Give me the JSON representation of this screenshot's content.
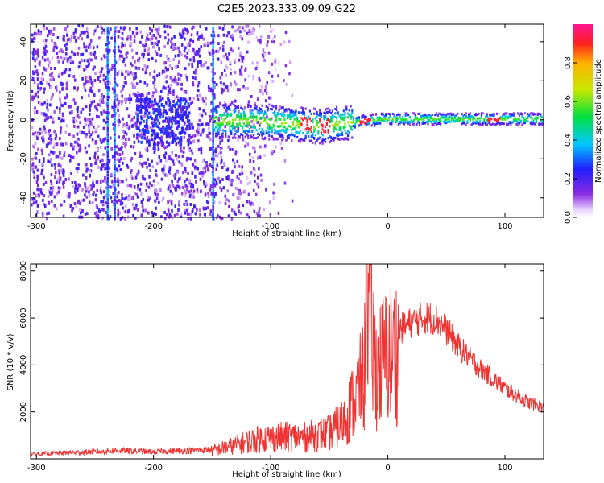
{
  "figure_title": "C2E5.2023.333.09.09.G22",
  "colors": {
    "snr_line": "#ee3333",
    "frame": "#000000"
  },
  "chart_data": [
    {
      "type": "heatmap",
      "xlabel": "Height of straight line (km)",
      "ylabel": "Frequency (Hz)",
      "xlim": [
        -305,
        133
      ],
      "ylim": [
        -50,
        49
      ],
      "xticks": [
        -300,
        -200,
        -100,
        0,
        100
      ],
      "yticks": [
        -40,
        -20,
        0,
        20,
        40
      ],
      "grid": false,
      "colorbar": {
        "label": "Normalized spectral amplitude",
        "range": [
          0,
          1
        ],
        "ticks": [
          0.0,
          0.2,
          0.4,
          0.6,
          0.8
        ],
        "colormap": "rainbow (purple-blue-cyan-green-yellow-red-magenta)"
      },
      "features": {
        "signal_track_hz": [
          [
            -150,
            0
          ],
          [
            -120,
            0
          ],
          [
            -90,
            -1
          ],
          [
            -70,
            -2
          ],
          [
            -55,
            -3
          ],
          [
            -40,
            -1
          ],
          [
            -20,
            0
          ],
          [
            -5,
            1
          ],
          [
            0,
            1
          ],
          [
            40,
            1
          ],
          [
            80,
            1
          ],
          [
            100,
            1
          ],
          [
            133,
            1
          ]
        ],
        "peak_amplitude_heights_km": [
          -70,
          -55,
          -20,
          90
        ],
        "vertical_stripes_km": [
          -240,
          -234,
          -150
        ],
        "noise_region_km": [
          -305,
          -120
        ]
      }
    },
    {
      "type": "line",
      "xlabel": "Height of straight line (km)",
      "ylabel": "SNR (10 * v/v)",
      "xlim": [
        -305,
        133
      ],
      "ylim": [
        0,
        8300
      ],
      "xticks": [
        -300,
        -200,
        -100,
        0,
        100
      ],
      "yticks": [
        2000,
        4000,
        6000,
        8000
      ],
      "grid": false,
      "series": [
        {
          "x": [
            -305,
            -280,
            -250,
            -230,
            -200,
            -170,
            -150,
            -130,
            -110,
            -90,
            -70,
            -50,
            -40,
            -30,
            -20,
            -18,
            -10,
            0,
            10,
            20,
            30,
            40,
            50,
            60,
            70,
            80,
            90,
            100,
            110,
            120,
            133
          ],
          "y": [
            200,
            250,
            300,
            350,
            300,
            350,
            400,
            700,
            1000,
            1100,
            1100,
            1300,
            1700,
            2800,
            4200,
            8300,
            4500,
            5200,
            5500,
            5800,
            6000,
            6000,
            5500,
            4800,
            4300,
            3800,
            3400,
            3000,
            2700,
            2400,
            2200
          ]
        }
      ]
    }
  ]
}
